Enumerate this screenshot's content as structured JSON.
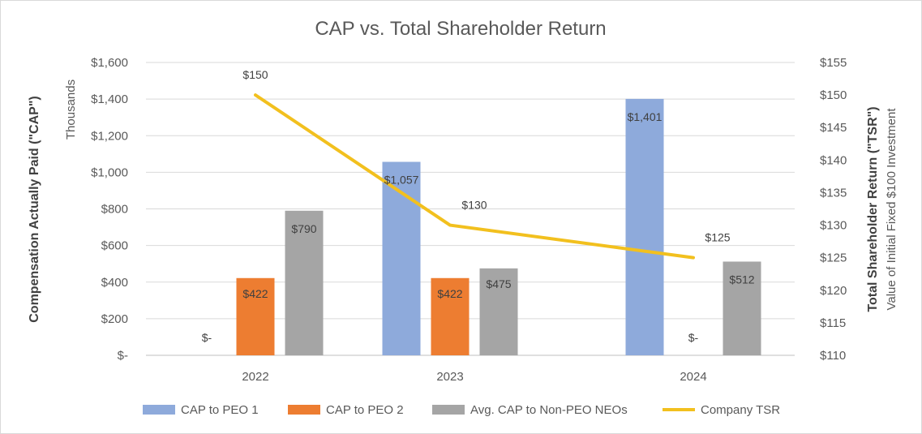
{
  "chart_data": {
    "type": "bar",
    "title": "CAP vs. Total Shareholder Return",
    "categories": [
      "2022",
      "2023",
      "2024"
    ],
    "ylabel": "Compensation Actually Paid (\"CAP\")",
    "ylabel_units": "Thousands",
    "y2label": "Total Shareholder Return (\"TSR\")",
    "y2label_sub": "Value of Initial Fixed $100 Investment",
    "ylim": [
      0,
      1600
    ],
    "y_ticks": [
      0,
      200,
      400,
      600,
      800,
      1000,
      1200,
      1400,
      1600
    ],
    "y_tick_labels": [
      "$-",
      "$200",
      "$400",
      "$600",
      "$800",
      "$1,000",
      "$1,200",
      "$1,400",
      "$1,600"
    ],
    "y2lim": [
      110,
      155
    ],
    "y2_ticks": [
      110,
      115,
      120,
      125,
      130,
      135,
      140,
      145,
      150,
      155
    ],
    "y2_tick_labels": [
      "$110",
      "$115",
      "$120",
      "$125",
      "$130",
      "$135",
      "$140",
      "$145",
      "$150",
      "$155"
    ],
    "series": [
      {
        "name": "CAP to PEO 1",
        "type": "bar",
        "axis": "left",
        "color": "#8eaadb",
        "values": [
          0,
          1057,
          1401
        ],
        "labels": [
          "$-",
          "$1,057",
          "$1,401"
        ]
      },
      {
        "name": "CAP to PEO 2",
        "type": "bar",
        "axis": "left",
        "color": "#ed7d31",
        "values": [
          422,
          422,
          0
        ],
        "labels": [
          "$422",
          "$422",
          "$-"
        ]
      },
      {
        "name": "Avg. CAP to Non-PEO NEOs",
        "type": "bar",
        "axis": "left",
        "color": "#a5a5a5",
        "values": [
          790,
          475,
          512
        ],
        "labels": [
          "$790",
          "$475",
          "$512"
        ]
      },
      {
        "name": "Company TSR",
        "type": "line",
        "axis": "right",
        "color": "#f2c01e",
        "values": [
          150,
          130,
          125
        ],
        "labels": [
          "$150",
          "$130",
          "$125"
        ]
      }
    ],
    "legend_position": "bottom",
    "grid": true
  }
}
